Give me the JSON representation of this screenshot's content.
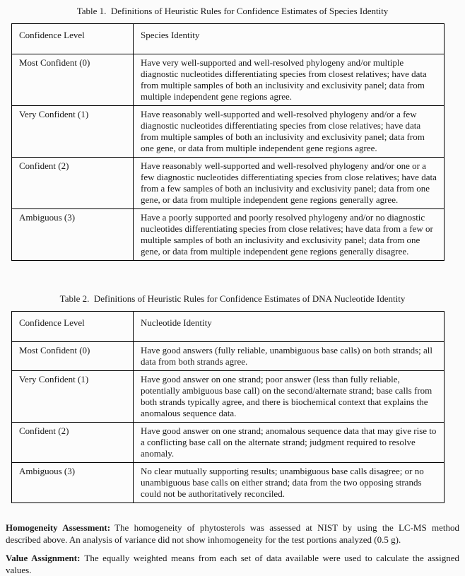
{
  "table1": {
    "title": "Table 1.  Definitions of Heuristic Rules for Confidence Estimates of Species Identity",
    "headers": [
      "Confidence Level",
      "Species Identity"
    ],
    "rows": [
      {
        "level": "Most Confident (0)",
        "definition": "Have very well-supported and well-resolved phylogeny and/or multiple diagnostic nucleotides differentiating species from closest relatives; have data from multiple samples of both an inclusivity and exclusivity panel; data from multiple independent gene regions agree."
      },
      {
        "level": "Very Confident (1)",
        "definition": "Have reasonably well-supported and well-resolved phylogeny and/or a few diagnostic nucleotides differentiating species from close relatives; have data from multiple samples of both an inclusivity and exclusivity panel; data from one gene, or data from multiple independent gene regions agree."
      },
      {
        "level": "Confident (2)",
        "definition": "Have reasonably well-supported and well-resolved phylogeny and/or one or a few diagnostic nucleotides differentiating species from close relatives; have data from a few samples of both an inclusivity and exclusivity panel; data from one gene, or data from multiple independent gene regions generally agree."
      },
      {
        "level": "Ambiguous (3)",
        "definition": "Have a poorly supported and poorly resolved phylogeny and/or no diagnostic nucleotides differentiating species from close relatives; have data from a few or multiple samples of both an inclusivity and exclusivity panel; data from one gene, or data from multiple independent gene regions generally disagree."
      }
    ]
  },
  "table2": {
    "title": "Table 2.  Definitions of Heuristic Rules for Confidence Estimates of DNA Nucleotide Identity",
    "headers": [
      "Confidence Level",
      "Nucleotide Identity"
    ],
    "rows": [
      {
        "level": "Most Confident (0)",
        "definition": "Have good answers (fully reliable, unambiguous base calls) on both strands; all data from both strands agree."
      },
      {
        "level": "Very Confident (1)",
        "definition": "Have good answer on one strand; poor answer (less than fully reliable, potentially ambiguous base call) on the second/alternate strand; base calls from both strands typically agree, and there is biochemical context that explains the anomalous sequence data."
      },
      {
        "level": "Confident (2)",
        "definition": "Have good answer on one strand; anomalous sequence data that may give rise to a conflicting base call on the alternate strand; judgment required to resolve anomaly."
      },
      {
        "level": "Ambiguous (3)",
        "definition": "No clear mutually supporting results; unambiguous base calls disagree; or no unambiguous base calls on either strand; data from the two opposing strands could not be authoritatively reconciled."
      }
    ]
  },
  "paragraphs": [
    {
      "label": "Homogeneity Assessment:",
      "text": "The homogeneity of phytosterols was assessed at NIST by using the LC-MS method described above.  An analysis of variance did not show inhomogeneity for the test portions analyzed (0.5 g)."
    },
    {
      "label": "Value Assignment:",
      "text": "The equally weighted means from each set of data available were used to calculate the assigned values."
    }
  ]
}
